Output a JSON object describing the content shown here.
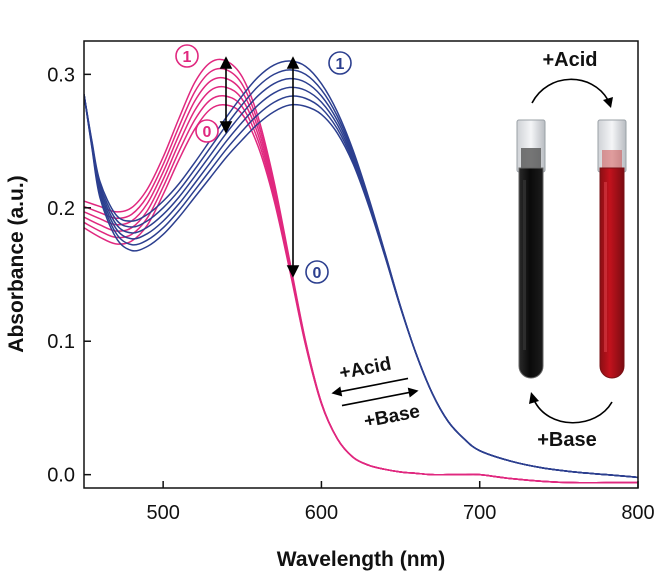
{
  "chart_data": {
    "type": "line",
    "title": "",
    "xlabel": "Wavelength (nm)",
    "ylabel": "Absorbance (a.u.)",
    "xlim": [
      450,
      800
    ],
    "ylim": [
      -0.01,
      0.325
    ],
    "xticks": [
      500,
      600,
      700,
      800
    ],
    "yticks": [
      0.0,
      0.1,
      0.2,
      0.3
    ],
    "xtick_labels": [
      "500",
      "600",
      "700",
      "800"
    ],
    "ytick_labels": [
      "0.0",
      "0.1",
      "0.2",
      "0.3"
    ],
    "grid": false,
    "legend": "none",
    "colors": {
      "acid_series": "#e0287f",
      "base_series": "#2c3f8f",
      "text": "#111111"
    },
    "series_groups": [
      {
        "color": "#e0287f",
        "peak_label_max": "1",
        "peak_label_min": "0",
        "x": [
          450,
          460,
          470,
          480,
          490,
          500,
          510,
          520,
          530,
          540,
          550,
          560,
          570,
          580,
          590,
          600,
          610,
          620,
          630,
          640,
          650,
          660,
          670,
          680,
          690,
          700,
          720,
          740,
          760,
          780,
          800
        ],
        "y_max": [
          0.205,
          0.201,
          0.197,
          0.2,
          0.214,
          0.238,
          0.267,
          0.294,
          0.309,
          0.31,
          0.298,
          0.268,
          0.22,
          0.16,
          0.1,
          0.054,
          0.027,
          0.013,
          0.007,
          0.004,
          0.002,
          0.001,
          0.0,
          0.0,
          0.0,
          0.0,
          -0.003,
          -0.005,
          -0.006,
          -0.006,
          -0.006
        ],
        "y_min": [
          0.185,
          0.178,
          0.173,
          0.175,
          0.187,
          0.21,
          0.236,
          0.259,
          0.274,
          0.277,
          0.27,
          0.246,
          0.206,
          0.153,
          0.097,
          0.053,
          0.027,
          0.013,
          0.007,
          0.004,
          0.002,
          0.001,
          0.0,
          0.0,
          0.0,
          0.0,
          -0.003,
          -0.005,
          -0.006,
          -0.006,
          -0.006
        ]
      },
      {
        "color": "#2c3f8f",
        "peak_label_max": "1",
        "peak_label_min": "0",
        "x": [
          450,
          455,
          460,
          470,
          480,
          490,
          500,
          510,
          520,
          530,
          540,
          550,
          560,
          570,
          580,
          590,
          600,
          610,
          620,
          630,
          640,
          650,
          660,
          670,
          680,
          690,
          700,
          720,
          740,
          760,
          780,
          800
        ],
        "y_max": [
          0.285,
          0.25,
          0.22,
          0.195,
          0.19,
          0.195,
          0.205,
          0.218,
          0.234,
          0.251,
          0.268,
          0.284,
          0.298,
          0.307,
          0.31,
          0.306,
          0.293,
          0.272,
          0.243,
          0.207,
          0.167,
          0.126,
          0.09,
          0.061,
          0.04,
          0.027,
          0.018,
          0.01,
          0.005,
          0.002,
          0.0,
          -0.002
        ],
        "y_min": [
          0.285,
          0.245,
          0.208,
          0.178,
          0.168,
          0.171,
          0.18,
          0.193,
          0.208,
          0.223,
          0.238,
          0.251,
          0.263,
          0.272,
          0.277,
          0.276,
          0.27,
          0.256,
          0.233,
          0.201,
          0.164,
          0.125,
          0.09,
          0.061,
          0.04,
          0.027,
          0.018,
          0.01,
          0.005,
          0.002,
          0.0,
          -0.002
        ]
      }
    ]
  },
  "annotations": {
    "acid_peak_max": "1",
    "acid_peak_min": "0",
    "base_peak_max": "1",
    "base_peak_min": "0",
    "arrow_upper_label": "+Acid",
    "arrow_lower_label": "+Base",
    "photo_top_label": "+Acid",
    "photo_bottom_label": "+Base"
  }
}
